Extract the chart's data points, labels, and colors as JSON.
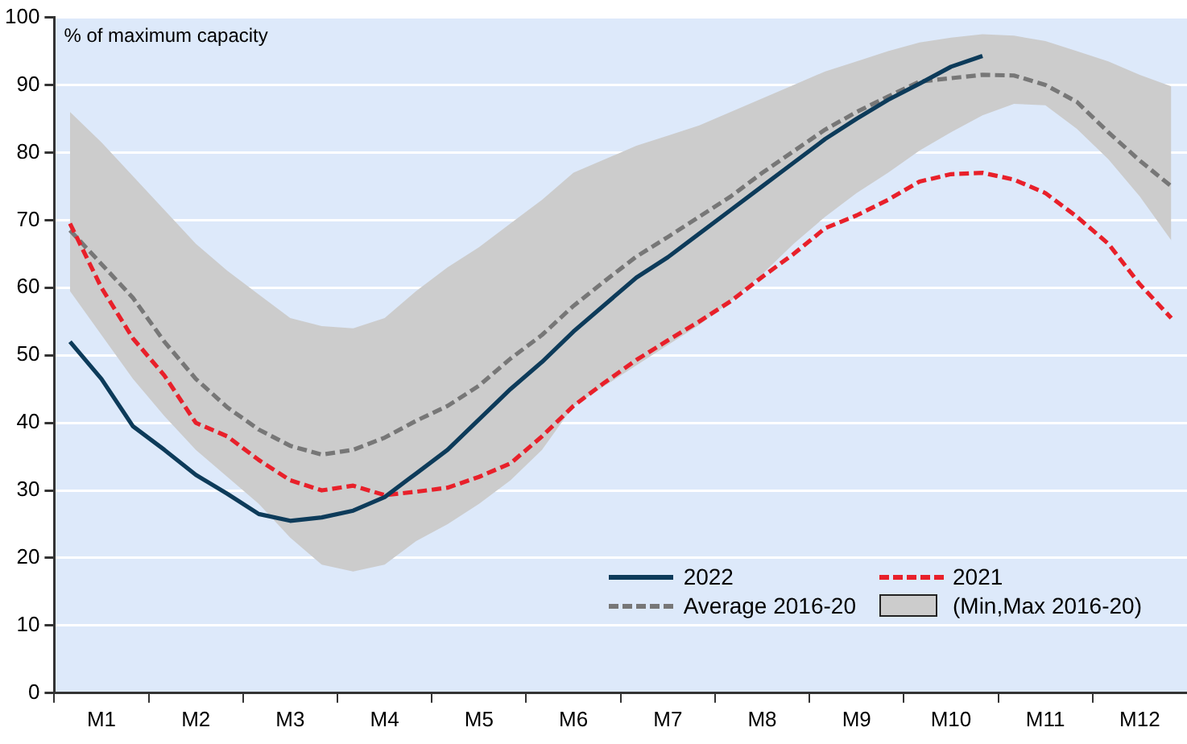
{
  "chart_data": {
    "type": "line",
    "ylabel": "% of maximum capacity",
    "categories": [
      null,
      "M1",
      null,
      null,
      "M2",
      null,
      null,
      "M3",
      null,
      null,
      "M4",
      null,
      null,
      "M5",
      null,
      null,
      "M6",
      null,
      null,
      "M7",
      null,
      null,
      "M8",
      null,
      null,
      "M9",
      null,
      null,
      "M10",
      null,
      null,
      "M11",
      null,
      null,
      "M12",
      null
    ],
    "ylim": [
      0,
      100
    ],
    "yticks": [
      0,
      10,
      20,
      30,
      40,
      50,
      60,
      70,
      80,
      90,
      100
    ],
    "grid": "y",
    "legend": "bottom right",
    "series": [
      {
        "name": "2022",
        "color": "#0d3b5a",
        "line_style": "solid",
        "values": [
          52,
          46.5,
          39.5,
          36,
          32.3,
          29.5,
          26.5,
          25.5,
          26,
          27,
          29,
          32.5,
          36,
          40.5,
          45,
          49,
          53.5,
          57.5,
          61.5,
          64.5,
          68,
          71.5,
          75,
          78.5,
          82,
          85,
          87.8,
          90.2,
          92.7,
          94.3,
          null,
          null,
          null,
          null,
          null,
          null
        ]
      },
      {
        "name": "2021",
        "color": "#e8202a",
        "line_style": "dashed",
        "values": [
          69.5,
          60,
          52.5,
          47,
          40,
          38,
          34.5,
          31.5,
          30,
          30.7,
          29.3,
          29.8,
          30.4,
          32,
          34,
          38,
          42.5,
          46,
          49.3,
          52.2,
          55,
          58,
          61.6,
          65,
          68.8,
          70.7,
          73,
          75.7,
          76.8,
          77,
          76,
          74,
          70.5,
          66.5,
          60.5,
          55.5
        ]
      },
      {
        "name": "Average 2016-20",
        "color": "#777777",
        "line_style": "dashed",
        "values": [
          68.5,
          63.5,
          58.5,
          52,
          46.5,
          42.3,
          39,
          36.6,
          35.3,
          36,
          37.8,
          40.3,
          42.5,
          45.5,
          49.5,
          53,
          57.3,
          61,
          64.6,
          67.5,
          70.5,
          73.5,
          77,
          80.2,
          83.4,
          86,
          88.3,
          90.5,
          91,
          91.5,
          91.4,
          90,
          87.5,
          83,
          78.8,
          75
        ]
      },
      {
        "name": "(Min,Max 2016-20)",
        "type": "area",
        "color": "#cccccc",
        "values": [
          null,
          null,
          null,
          null,
          null,
          null,
          null,
          null,
          null,
          null,
          null,
          null,
          null,
          null,
          null,
          null,
          null,
          null,
          null,
          null,
          null,
          null,
          null,
          null,
          null,
          null,
          null,
          null,
          null,
          null,
          null,
          null,
          null,
          null,
          null,
          null
        ],
        "lower": [
          59.5,
          53,
          46.5,
          41,
          36,
          32,
          28,
          23,
          19,
          18,
          19,
          22.5,
          25,
          28,
          31.5,
          36,
          42.5,
          45.5,
          48.5,
          51.5,
          54.5,
          58,
          62,
          66.5,
          70.5,
          74,
          77,
          80.3,
          83,
          85.5,
          87.2,
          87,
          83.5,
          79,
          73.5,
          67
        ],
        "upper": [
          86,
          81.5,
          76.5,
          71.5,
          66.5,
          62.5,
          59,
          55.5,
          54.3,
          54,
          55.5,
          59.5,
          63,
          66,
          69.5,
          73,
          77,
          79,
          81,
          82.5,
          84,
          86,
          88,
          90,
          92,
          93.5,
          95,
          96.3,
          97,
          97.5,
          97.3,
          96.5,
          95,
          93.5,
          91.5,
          89.8
        ]
      }
    ]
  }
}
